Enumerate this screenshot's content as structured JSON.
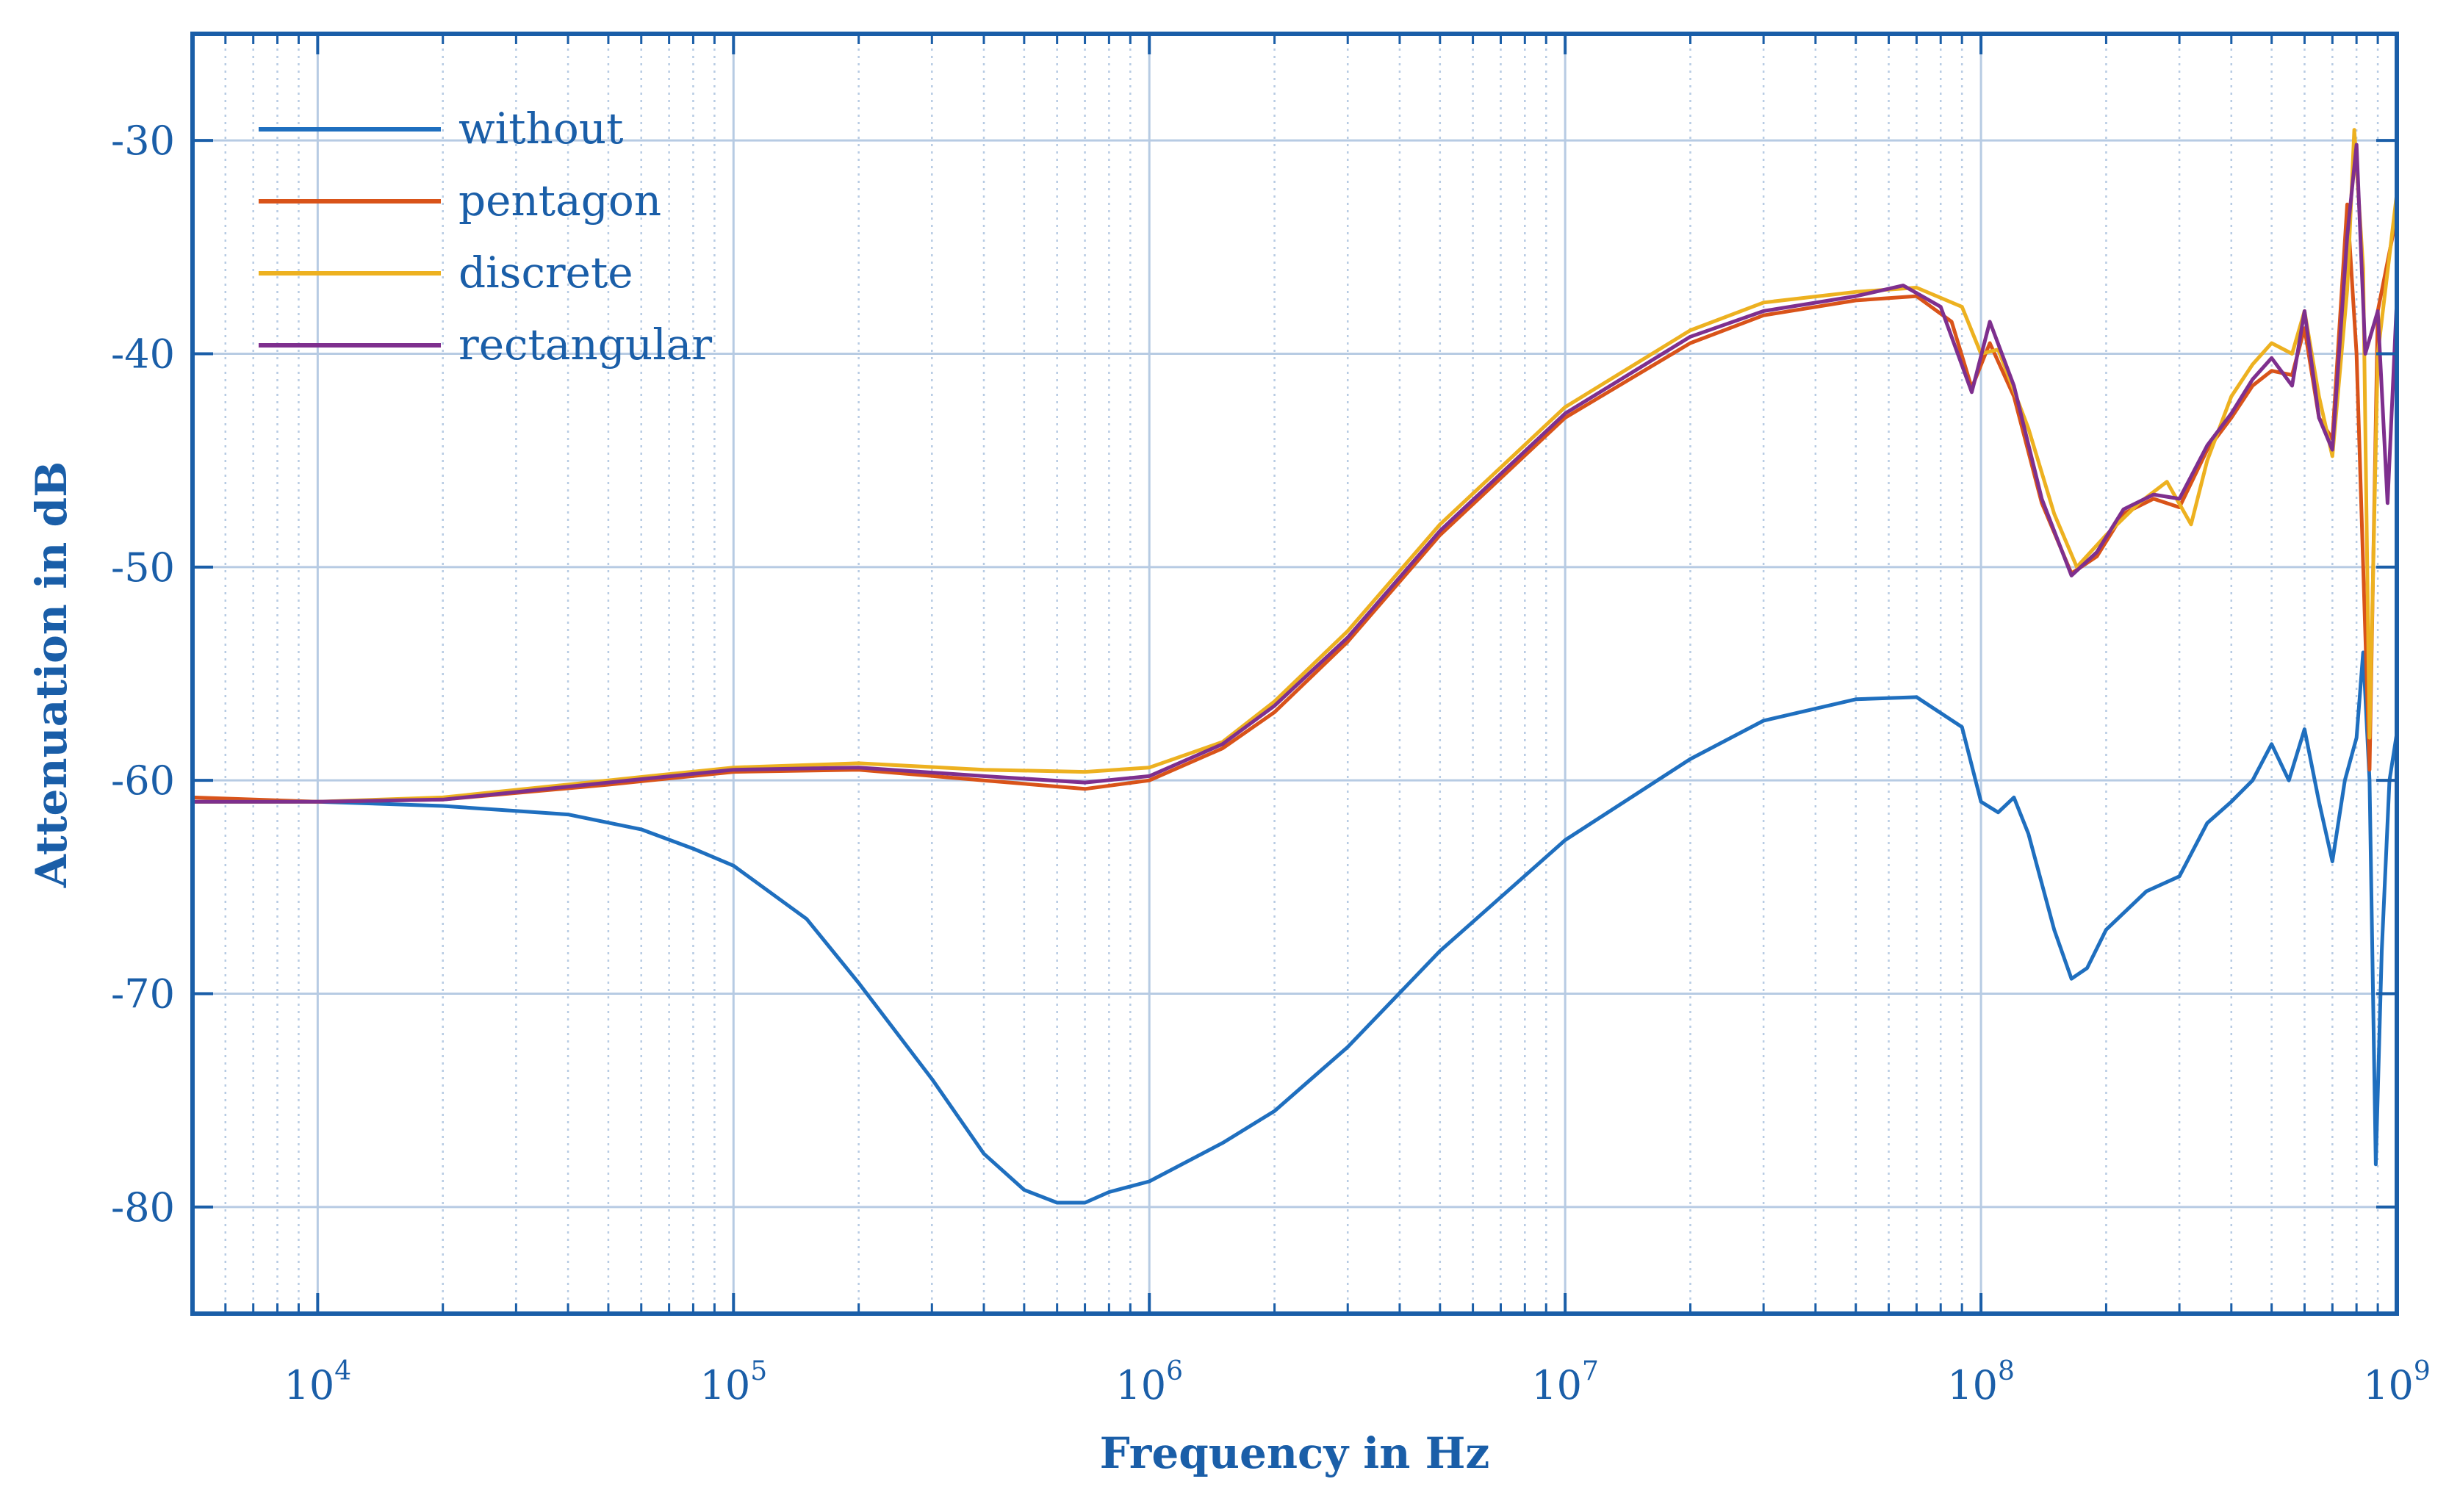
{
  "chart_data": {
    "type": "line",
    "xscale": "log",
    "xlabel": "Frequency in Hz",
    "ylabel": "Attenuation in dB",
    "xlim": [
      5000,
      1000000000
    ],
    "ylim": [
      -85,
      -25
    ],
    "grid": true,
    "legend_position": "top-left",
    "y_ticks": [
      -30,
      -40,
      -50,
      -60,
      -70,
      -80
    ],
    "y_tick_labels": [
      "-30",
      "-40",
      "-50",
      "-60",
      "-70",
      "-80"
    ],
    "x_ticks": [
      10000,
      100000,
      1000000,
      10000000,
      100000000,
      1000000000
    ],
    "x_tick_base": [
      "10",
      "10",
      "10",
      "10",
      "10",
      "10"
    ],
    "x_tick_exponents": [
      "4",
      "5",
      "6",
      "7",
      "8",
      "9"
    ],
    "series": [
      {
        "name": "without",
        "color": "#1f6fbf",
        "points": [
          [
            5000,
            -61
          ],
          [
            10000,
            -61
          ],
          [
            20000,
            -61.2
          ],
          [
            40000,
            -61.6
          ],
          [
            60000,
            -62.3
          ],
          [
            80000,
            -63.2
          ],
          [
            100000,
            -64
          ],
          [
            150000,
            -66.5
          ],
          [
            200000,
            -69.5
          ],
          [
            300000,
            -74
          ],
          [
            400000,
            -77.5
          ],
          [
            500000,
            -79.2
          ],
          [
            600000,
            -79.8
          ],
          [
            700000,
            -79.8
          ],
          [
            800000,
            -79.3
          ],
          [
            1000000,
            -78.8
          ],
          [
            1500000,
            -77
          ],
          [
            2000000,
            -75.5
          ],
          [
            3000000,
            -72.5
          ],
          [
            5000000,
            -68
          ],
          [
            10000000,
            -62.8
          ],
          [
            20000000,
            -59
          ],
          [
            30000000,
            -57.2
          ],
          [
            50000000,
            -56.2
          ],
          [
            70000000,
            -56.1
          ],
          [
            90000000,
            -57.5
          ],
          [
            100000000,
            -61
          ],
          [
            110000000,
            -61.5
          ],
          [
            120000000,
            -60.8
          ],
          [
            130000000,
            -62.5
          ],
          [
            150000000,
            -67
          ],
          [
            165000000,
            -69.3
          ],
          [
            180000000,
            -68.8
          ],
          [
            200000000,
            -67
          ],
          [
            250000000,
            -65.2
          ],
          [
            300000000,
            -64.5
          ],
          [
            350000000,
            -62
          ],
          [
            400000000,
            -61
          ],
          [
            450000000,
            -60
          ],
          [
            500000000,
            -58.3
          ],
          [
            550000000,
            -60
          ],
          [
            600000000,
            -57.6
          ],
          [
            650000000,
            -61
          ],
          [
            700000000,
            -63.8
          ],
          [
            750000000,
            -60
          ],
          [
            800000000,
            -58
          ],
          [
            830000000,
            -54
          ],
          [
            860000000,
            -60
          ],
          [
            890000000,
            -78
          ],
          [
            920000000,
            -68
          ],
          [
            960000000,
            -60
          ],
          [
            1000000000,
            -57.8
          ]
        ]
      },
      {
        "name": "pentagon",
        "color": "#d95319",
        "points": [
          [
            5000,
            -60.8
          ],
          [
            10000,
            -61
          ],
          [
            20000,
            -60.9
          ],
          [
            50000,
            -60.2
          ],
          [
            100000,
            -59.6
          ],
          [
            200000,
            -59.5
          ],
          [
            400000,
            -60
          ],
          [
            700000,
            -60.4
          ],
          [
            1000000,
            -60
          ],
          [
            1500000,
            -58.5
          ],
          [
            2000000,
            -56.8
          ],
          [
            3000000,
            -53.5
          ],
          [
            5000000,
            -48.5
          ],
          [
            10000000,
            -43
          ],
          [
            20000000,
            -39.5
          ],
          [
            30000000,
            -38.2
          ],
          [
            50000000,
            -37.5
          ],
          [
            70000000,
            -37.3
          ],
          [
            85000000,
            -38.5
          ],
          [
            95000000,
            -41.6
          ],
          [
            105000000,
            -39.5
          ],
          [
            120000000,
            -42
          ],
          [
            140000000,
            -47
          ],
          [
            165000000,
            -50.3
          ],
          [
            190000000,
            -49.5
          ],
          [
            220000000,
            -47.5
          ],
          [
            260000000,
            -46.8
          ],
          [
            300000000,
            -47.2
          ],
          [
            350000000,
            -44.5
          ],
          [
            400000000,
            -43
          ],
          [
            450000000,
            -41.5
          ],
          [
            500000000,
            -40.8
          ],
          [
            560000000,
            -41
          ],
          [
            600000000,
            -38.8
          ],
          [
            650000000,
            -43
          ],
          [
            700000000,
            -44
          ],
          [
            760000000,
            -33
          ],
          [
            800000000,
            -40
          ],
          [
            860000000,
            -59.5
          ],
          [
            900000000,
            -38
          ],
          [
            1000000000,
            -33.5
          ]
        ]
      },
      {
        "name": "discrete",
        "color": "#edb120",
        "points": [
          [
            5000,
            -61
          ],
          [
            10000,
            -61
          ],
          [
            20000,
            -60.8
          ],
          [
            50000,
            -60
          ],
          [
            100000,
            -59.4
          ],
          [
            200000,
            -59.2
          ],
          [
            400000,
            -59.5
          ],
          [
            700000,
            -59.6
          ],
          [
            1000000,
            -59.4
          ],
          [
            1500000,
            -58.2
          ],
          [
            2000000,
            -56.3
          ],
          [
            3000000,
            -53
          ],
          [
            5000000,
            -48
          ],
          [
            10000000,
            -42.5
          ],
          [
            20000000,
            -38.9
          ],
          [
            30000000,
            -37.6
          ],
          [
            50000000,
            -37.1
          ],
          [
            70000000,
            -36.9
          ],
          [
            90000000,
            -37.8
          ],
          [
            100000000,
            -40
          ],
          [
            110000000,
            -39.8
          ],
          [
            130000000,
            -43.5
          ],
          [
            150000000,
            -47.5
          ],
          [
            170000000,
            -50
          ],
          [
            200000000,
            -48.5
          ],
          [
            240000000,
            -47
          ],
          [
            280000000,
            -46
          ],
          [
            320000000,
            -48
          ],
          [
            350000000,
            -45
          ],
          [
            400000000,
            -42
          ],
          [
            450000000,
            -40.5
          ],
          [
            500000000,
            -39.5
          ],
          [
            560000000,
            -40
          ],
          [
            600000000,
            -38
          ],
          [
            650000000,
            -42
          ],
          [
            700000000,
            -44.8
          ],
          [
            760000000,
            -37
          ],
          [
            790000000,
            -29.5
          ],
          [
            830000000,
            -36
          ],
          [
            860000000,
            -58
          ],
          [
            900000000,
            -40
          ],
          [
            1000000000,
            -32.5
          ]
        ]
      },
      {
        "name": "rectangular",
        "color": "#7e2f8e",
        "points": [
          [
            5000,
            -61
          ],
          [
            10000,
            -61
          ],
          [
            20000,
            -60.9
          ],
          [
            50000,
            -60.1
          ],
          [
            100000,
            -59.5
          ],
          [
            200000,
            -59.4
          ],
          [
            400000,
            -59.8
          ],
          [
            700000,
            -60.1
          ],
          [
            1000000,
            -59.8
          ],
          [
            1500000,
            -58.3
          ],
          [
            2000000,
            -56.5
          ],
          [
            3000000,
            -53.3
          ],
          [
            5000000,
            -48.3
          ],
          [
            10000000,
            -42.8
          ],
          [
            20000000,
            -39.2
          ],
          [
            30000000,
            -38
          ],
          [
            50000000,
            -37.3
          ],
          [
            65000000,
            -36.8
          ],
          [
            80000000,
            -37.8
          ],
          [
            95000000,
            -41.8
          ],
          [
            105000000,
            -38.5
          ],
          [
            120000000,
            -41.5
          ],
          [
            140000000,
            -46.8
          ],
          [
            165000000,
            -50.4
          ],
          [
            190000000,
            -49.3
          ],
          [
            220000000,
            -47.3
          ],
          [
            260000000,
            -46.6
          ],
          [
            300000000,
            -46.8
          ],
          [
            350000000,
            -44.3
          ],
          [
            400000000,
            -42.8
          ],
          [
            450000000,
            -41.2
          ],
          [
            500000000,
            -40.2
          ],
          [
            560000000,
            -41.5
          ],
          [
            600000000,
            -38
          ],
          [
            650000000,
            -43
          ],
          [
            700000000,
            -44.5
          ],
          [
            760000000,
            -34.5
          ],
          [
            800000000,
            -30.2
          ],
          [
            840000000,
            -40
          ],
          [
            900000000,
            -38
          ],
          [
            950000000,
            -47
          ],
          [
            1000000000,
            -37.5
          ]
        ]
      }
    ]
  }
}
